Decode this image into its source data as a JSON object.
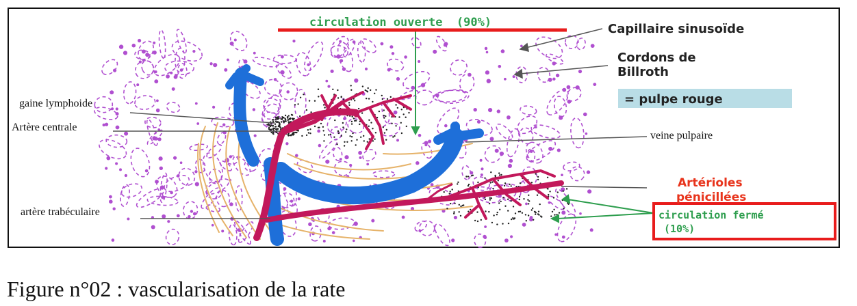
{
  "figure": {
    "labels": {
      "circulation_ouverte": "circulation ouverte  (90%)",
      "capillaire_sinusoide": "Capillaire sinusoïde",
      "cordons_line1": "Cordons de",
      "cordons_line2": "Billroth",
      "pulpe_rouge": "= pulpe rouge",
      "gaine_lymphoide": "gaine lymphoide",
      "artere_centrale": "Artère centrale",
      "veine_pulpaire": "veine pulpaire",
      "arterioles_line1": "Artérioles",
      "arterioles_line2": "pénicillées",
      "circulation_fermee_line1": "circulation fermé",
      "circulation_fermee_line2": "(10%)",
      "artere_trabeculaire": "artère trabéculaire"
    },
    "colors": {
      "artery": "#c2185b",
      "vein": "#1e6fd9",
      "lymph_dots": "#222222",
      "pulp_dashes": "#b04fd0",
      "trabecular": "#e6b36a",
      "green_label": "#2e9e4e",
      "red_label": "#e8341c",
      "red_box": "#e81c1c",
      "pulpe_box_bg": "#b9dde6"
    }
  },
  "caption": "Figure n°02 : vascularisation de la rate"
}
